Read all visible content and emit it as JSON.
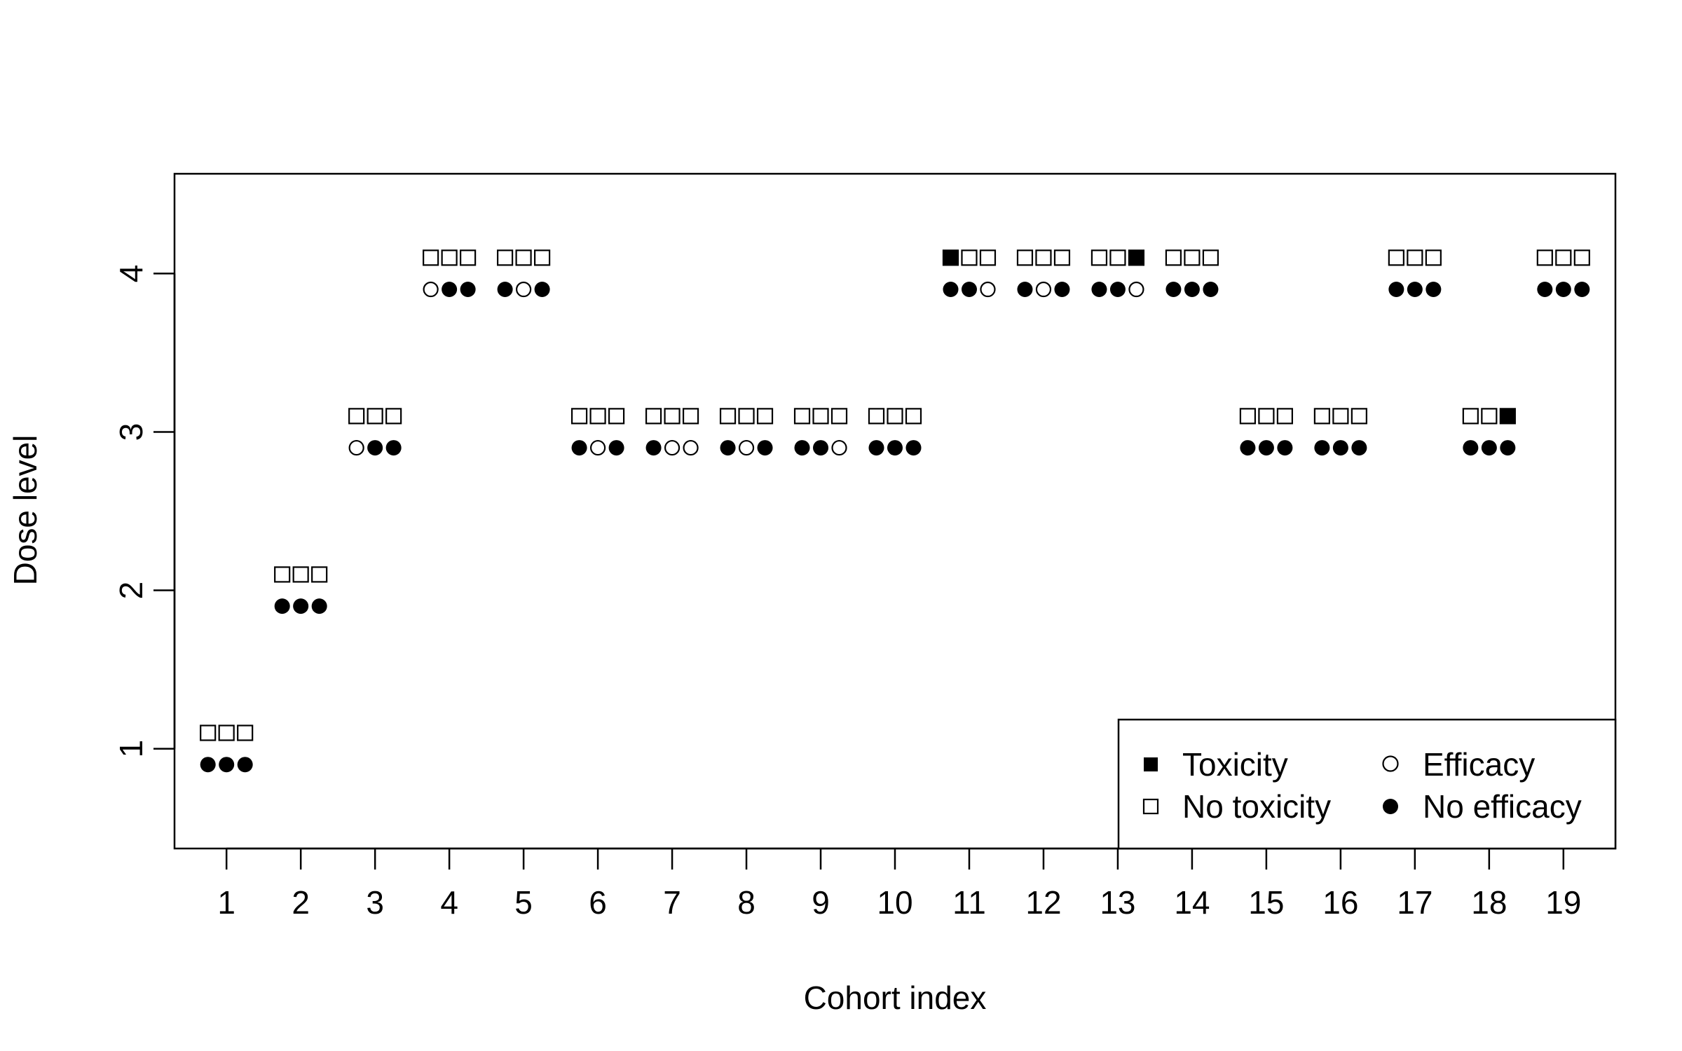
{
  "chart_data": {
    "type": "scatter",
    "xlabel": "Cohort index",
    "ylabel": "Dose level",
    "xticks": [
      1,
      2,
      3,
      4,
      5,
      6,
      7,
      8,
      9,
      10,
      11,
      12,
      13,
      14,
      15,
      16,
      17,
      18,
      19
    ],
    "yticks": [
      1,
      2,
      3,
      4
    ],
    "xlim": [
      0.3,
      19.7
    ],
    "ylim": [
      0.37,
      4.63
    ],
    "grid": false,
    "legend_position": "bottom-right",
    "legend": [
      {
        "label": "Toxicity",
        "symbol": "filled-square"
      },
      {
        "label": "Efficacy",
        "symbol": "open-circle"
      },
      {
        "label": "No toxicity",
        "symbol": "open-square"
      },
      {
        "label": "No efficacy",
        "symbol": "filled-circle"
      }
    ],
    "cohorts": [
      {
        "cohort": 1,
        "dose": 1,
        "toxicity": [
          0,
          0,
          0
        ],
        "efficacy": [
          0,
          0,
          0
        ]
      },
      {
        "cohort": 2,
        "dose": 2,
        "toxicity": [
          0,
          0,
          0
        ],
        "efficacy": [
          0,
          0,
          0
        ]
      },
      {
        "cohort": 3,
        "dose": 3,
        "toxicity": [
          0,
          0,
          0
        ],
        "efficacy": [
          1,
          0,
          0
        ]
      },
      {
        "cohort": 4,
        "dose": 4,
        "toxicity": [
          0,
          0,
          0
        ],
        "efficacy": [
          1,
          0,
          0
        ]
      },
      {
        "cohort": 5,
        "dose": 4,
        "toxicity": [
          0,
          0,
          0
        ],
        "efficacy": [
          0,
          1,
          0
        ]
      },
      {
        "cohort": 6,
        "dose": 3,
        "toxicity": [
          0,
          0,
          0
        ],
        "efficacy": [
          0,
          1,
          0
        ]
      },
      {
        "cohort": 7,
        "dose": 3,
        "toxicity": [
          0,
          0,
          0
        ],
        "efficacy": [
          0,
          1,
          1
        ]
      },
      {
        "cohort": 8,
        "dose": 3,
        "toxicity": [
          0,
          0,
          0
        ],
        "efficacy": [
          0,
          1,
          0
        ]
      },
      {
        "cohort": 9,
        "dose": 3,
        "toxicity": [
          0,
          0,
          0
        ],
        "efficacy": [
          0,
          0,
          1
        ]
      },
      {
        "cohort": 10,
        "dose": 3,
        "toxicity": [
          0,
          0,
          0
        ],
        "efficacy": [
          0,
          0,
          0
        ]
      },
      {
        "cohort": 11,
        "dose": 4,
        "toxicity": [
          1,
          0,
          0
        ],
        "efficacy": [
          0,
          0,
          1
        ]
      },
      {
        "cohort": 12,
        "dose": 4,
        "toxicity": [
          0,
          0,
          0
        ],
        "efficacy": [
          0,
          1,
          0
        ]
      },
      {
        "cohort": 13,
        "dose": 4,
        "toxicity": [
          0,
          0,
          1
        ],
        "efficacy": [
          0,
          0,
          1
        ]
      },
      {
        "cohort": 14,
        "dose": 4,
        "toxicity": [
          0,
          0,
          0
        ],
        "efficacy": [
          0,
          0,
          0
        ]
      },
      {
        "cohort": 15,
        "dose": 3,
        "toxicity": [
          0,
          0,
          0
        ],
        "efficacy": [
          0,
          0,
          0
        ]
      },
      {
        "cohort": 16,
        "dose": 3,
        "toxicity": [
          0,
          0,
          0
        ],
        "efficacy": [
          0,
          0,
          0
        ]
      },
      {
        "cohort": 17,
        "dose": 4,
        "toxicity": [
          0,
          0,
          0
        ],
        "efficacy": [
          0,
          0,
          0
        ]
      },
      {
        "cohort": 18,
        "dose": 3,
        "toxicity": [
          0,
          0,
          1
        ],
        "efficacy": [
          0,
          0,
          0
        ]
      },
      {
        "cohort": 19,
        "dose": 4,
        "toxicity": [
          0,
          0,
          0
        ],
        "efficacy": [
          0,
          0,
          0
        ]
      }
    ]
  }
}
